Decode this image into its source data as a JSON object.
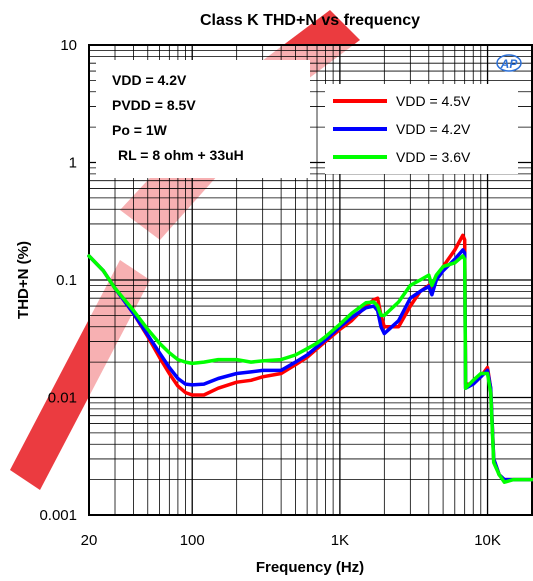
{
  "chart_data": {
    "type": "line",
    "title": "Class K THD+N vs frequency",
    "xlabel": "Frequency (Hz)",
    "ylabel": "THD+N (%)",
    "x_scale": "log",
    "y_scale": "log",
    "xlim": [
      20,
      20000
    ],
    "ylim": [
      0.001,
      10
    ],
    "grid": true,
    "x_ticks": [
      {
        "value": 20,
        "label": "20"
      },
      {
        "value": 100,
        "label": "100"
      },
      {
        "value": 1000,
        "label": "1K"
      },
      {
        "value": 10000,
        "label": "10K"
      }
    ],
    "y_ticks": [
      {
        "value": 10,
        "label": "10"
      },
      {
        "value": 1,
        "label": "1"
      },
      {
        "value": 0.1,
        "label": "0.1"
      },
      {
        "value": 0.01,
        "label": "0.01"
      },
      {
        "value": 0.001,
        "label": "0.001"
      }
    ],
    "conditions": [
      "VDD = 4.2V",
      "PVDD = 8.5V",
      "Po = 1W",
      "RL = 8 ohm + 33uH"
    ],
    "logo_text": "AP",
    "legend_position": "top-right",
    "series": [
      {
        "name": "VDD = 4.5V",
        "color": "#ff0000",
        "x": [
          20,
          25,
          30,
          40,
          50,
          60,
          70,
          80,
          90,
          100,
          120,
          150,
          200,
          250,
          300,
          400,
          500,
          600,
          700,
          800,
          1000,
          1200,
          1500,
          1700,
          1800,
          1900,
          2000,
          2500,
          3000,
          3500,
          4000,
          4200,
          4500,
          5000,
          6000,
          6800,
          7000,
          7100,
          8000,
          9000,
          10000,
          10500,
          11000,
          12000,
          13000,
          15000,
          20000
        ],
        "y": [
          0.16,
          0.12,
          0.085,
          0.052,
          0.033,
          0.022,
          0.016,
          0.0125,
          0.011,
          0.0105,
          0.0105,
          0.012,
          0.0135,
          0.014,
          0.015,
          0.016,
          0.019,
          0.022,
          0.026,
          0.03,
          0.038,
          0.045,
          0.06,
          0.068,
          0.07,
          0.05,
          0.04,
          0.04,
          0.06,
          0.08,
          0.09,
          0.08,
          0.1,
          0.13,
          0.18,
          0.24,
          0.22,
          0.013,
          0.013,
          0.015,
          0.018,
          0.012,
          0.003,
          0.0022,
          0.002,
          0.002,
          0.002
        ]
      },
      {
        "name": "VDD = 4.2V",
        "color": "#0000ff",
        "x": [
          20,
          25,
          30,
          40,
          50,
          60,
          70,
          80,
          90,
          100,
          120,
          150,
          200,
          250,
          300,
          400,
          500,
          600,
          700,
          800,
          1000,
          1200,
          1500,
          1700,
          1800,
          1900,
          2000,
          2500,
          3000,
          3500,
          4000,
          4200,
          4500,
          5000,
          6000,
          6800,
          7000,
          7100,
          8000,
          9000,
          10000,
          10500,
          11000,
          12000,
          13000,
          15000,
          20000
        ],
        "y": [
          0.16,
          0.12,
          0.085,
          0.052,
          0.034,
          0.024,
          0.018,
          0.0145,
          0.013,
          0.0128,
          0.013,
          0.0145,
          0.016,
          0.0165,
          0.017,
          0.017,
          0.02,
          0.023,
          0.027,
          0.031,
          0.04,
          0.048,
          0.058,
          0.06,
          0.055,
          0.04,
          0.035,
          0.045,
          0.07,
          0.08,
          0.088,
          0.075,
          0.1,
          0.12,
          0.15,
          0.18,
          0.17,
          0.012,
          0.013,
          0.015,
          0.017,
          0.012,
          0.003,
          0.0022,
          0.002,
          0.002,
          0.002
        ]
      },
      {
        "name": "VDD = 3.6V",
        "color": "#00ff00",
        "x": [
          20,
          25,
          30,
          40,
          50,
          60,
          70,
          80,
          90,
          100,
          120,
          150,
          200,
          250,
          300,
          400,
          500,
          600,
          700,
          800,
          1000,
          1200,
          1500,
          1700,
          1800,
          1900,
          2000,
          2500,
          3000,
          3500,
          4000,
          4200,
          4500,
          5000,
          6000,
          6800,
          7000,
          7100,
          8000,
          9000,
          10000,
          10500,
          11000,
          12000,
          13000,
          15000,
          20000
        ],
        "y": [
          0.16,
          0.12,
          0.085,
          0.055,
          0.038,
          0.029,
          0.024,
          0.021,
          0.02,
          0.0195,
          0.02,
          0.021,
          0.021,
          0.02,
          0.0205,
          0.021,
          0.023,
          0.026,
          0.029,
          0.033,
          0.042,
          0.052,
          0.064,
          0.065,
          0.06,
          0.05,
          0.05,
          0.065,
          0.09,
          0.1,
          0.11,
          0.09,
          0.11,
          0.13,
          0.14,
          0.16,
          0.15,
          0.012,
          0.014,
          0.016,
          0.016,
          0.011,
          0.0028,
          0.0022,
          0.0019,
          0.002,
          0.002
        ]
      }
    ]
  }
}
